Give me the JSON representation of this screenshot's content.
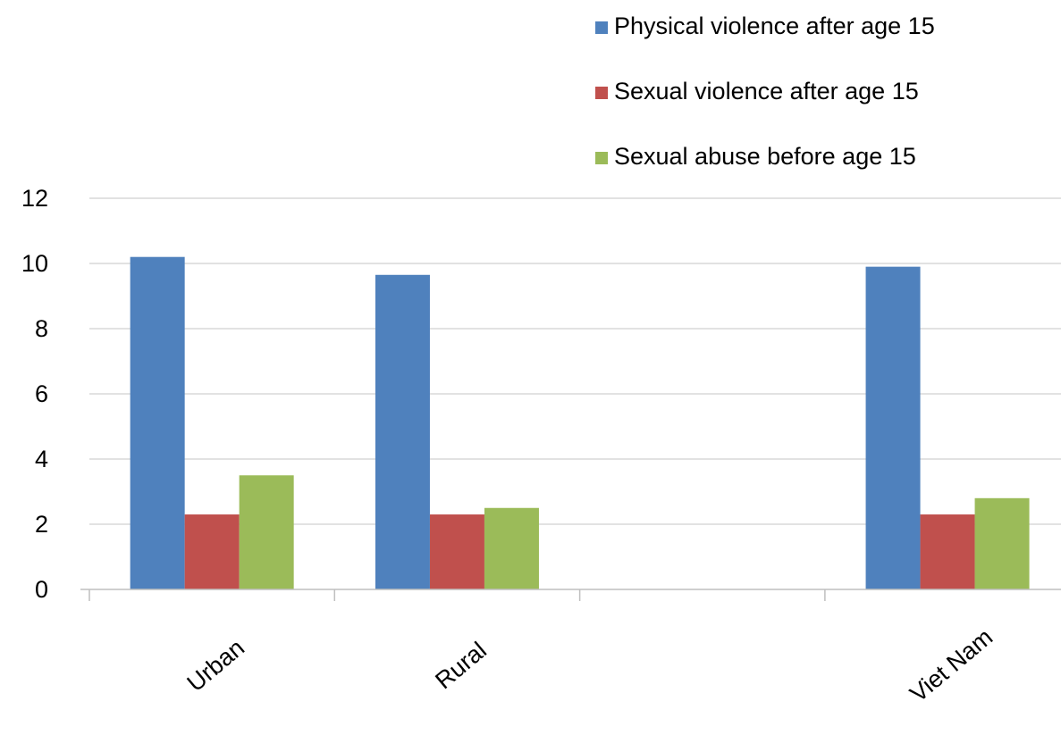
{
  "chart_data": {
    "type": "bar",
    "categories": [
      "Urban",
      "Rural",
      "",
      "Viet Nam"
    ],
    "series": [
      {
        "name": "Physical violence after age 15",
        "color": "#4F81BD",
        "values": [
          10.2,
          9.65,
          null,
          9.9
        ]
      },
      {
        "name": "Sexual violence after age 15",
        "color": "#C0504D",
        "values": [
          2.3,
          2.3,
          null,
          2.3
        ]
      },
      {
        "name": "Sexual abuse before age 15",
        "color": "#9BBB59",
        "values": [
          3.5,
          2.5,
          null,
          2.8
        ]
      }
    ],
    "title": "",
    "xlabel": "",
    "ylabel": "",
    "ylim": [
      0,
      12
    ],
    "yticks": [
      "0",
      "2",
      "4",
      "6",
      "8",
      "10",
      "12"
    ],
    "grid": true,
    "legend_position": "top-right",
    "gridline_color": "#D9D9D9",
    "axis_color": "#BFBFBF"
  }
}
